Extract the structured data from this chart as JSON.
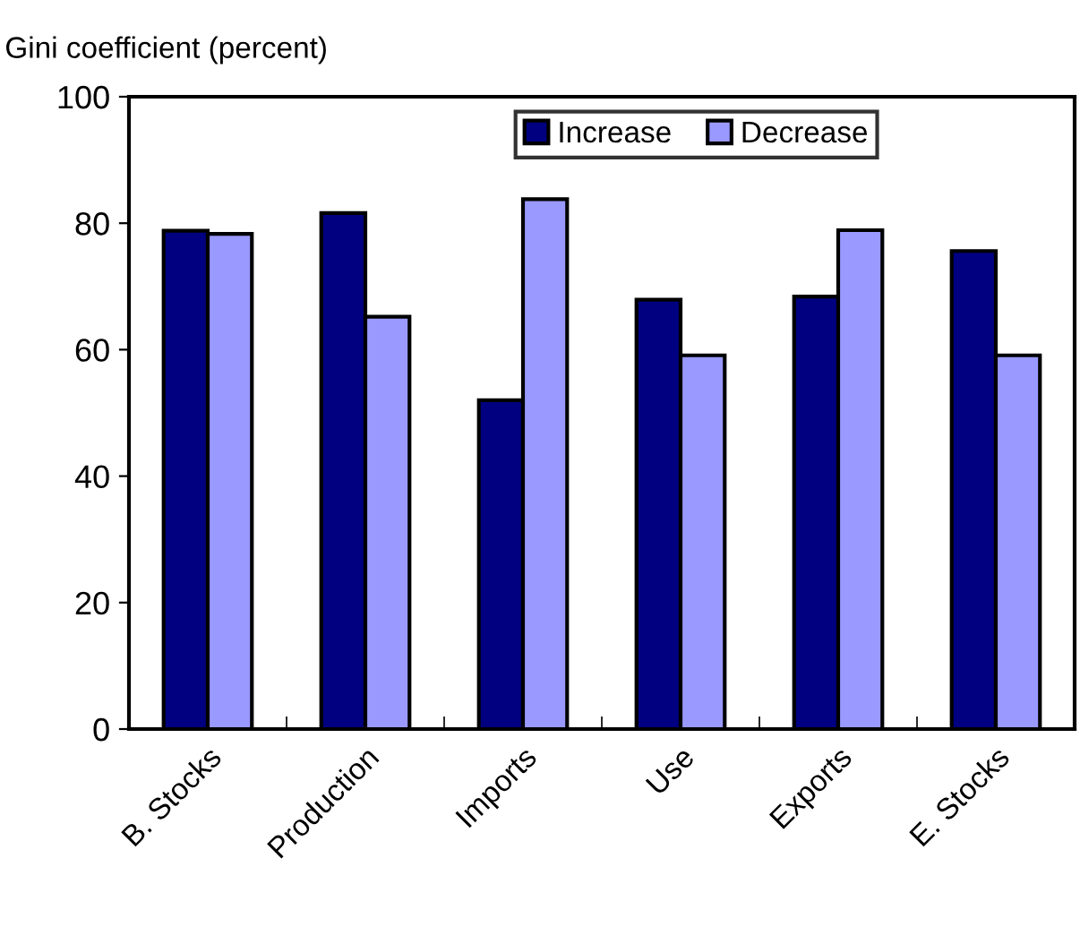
{
  "chart_data": {
    "type": "bar",
    "ylabel": "Gini coefficient (percent)",
    "categories": [
      "B. Stocks",
      "Production",
      "Imports",
      "Use",
      "Exports",
      "E. Stocks"
    ],
    "series": [
      {
        "name": "Increase",
        "color": "#000080",
        "values": [
          78.8,
          81.6,
          52.0,
          67.9,
          68.4,
          75.6
        ]
      },
      {
        "name": "Decrease",
        "color": "#9999ff",
        "values": [
          78.3,
          65.2,
          83.8,
          59.1,
          78.9,
          59.1
        ]
      }
    ],
    "ylim": [
      0,
      100
    ],
    "yticks": [
      0,
      20,
      40,
      60,
      80,
      100
    ],
    "grid": false,
    "legend": "top"
  }
}
